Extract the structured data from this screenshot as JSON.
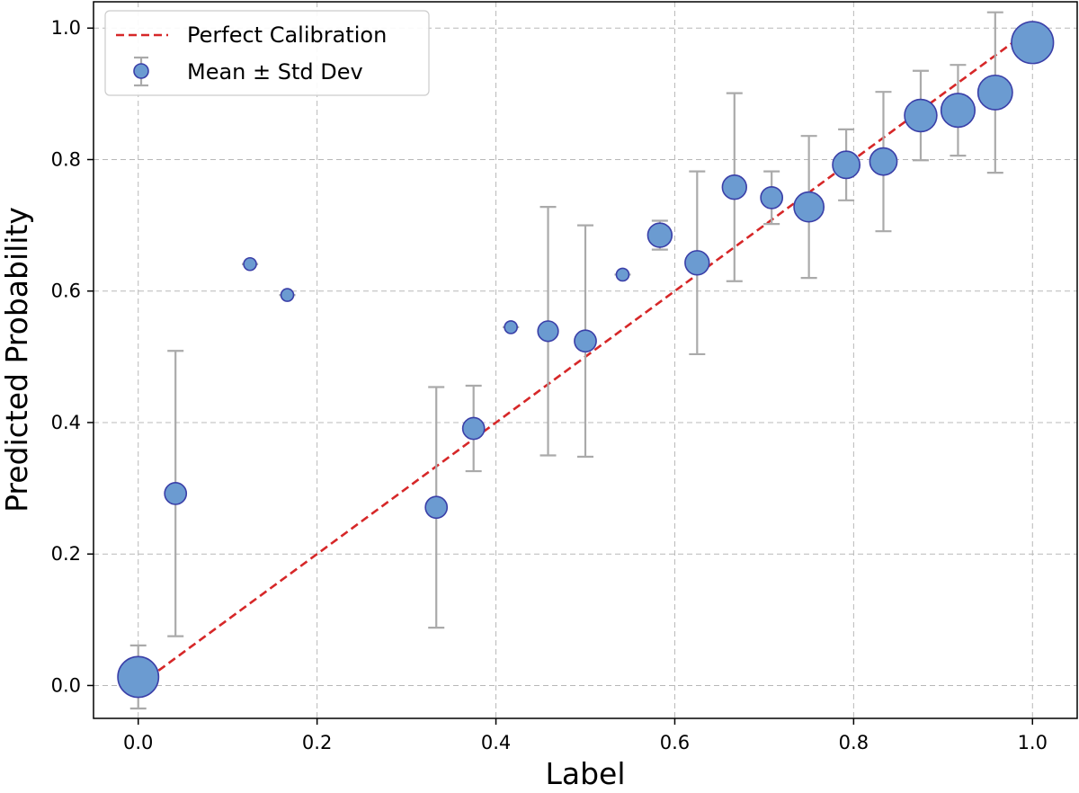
{
  "chart_data": {
    "type": "scatter",
    "title": "",
    "xlabel": "Label",
    "ylabel": "Predicted Probability",
    "xlim": [
      -0.05,
      1.05
    ],
    "ylim": [
      -0.05,
      1.04
    ],
    "xticks": [
      0.0,
      0.2,
      0.4,
      0.6,
      0.8,
      1.0
    ],
    "xtick_labels": [
      "0.0",
      "0.2",
      "0.4",
      "0.6",
      "0.8",
      "1.0"
    ],
    "yticks": [
      0.0,
      0.2,
      0.4,
      0.6,
      0.8,
      1.0
    ],
    "ytick_labels": [
      "0.0",
      "0.2",
      "0.4",
      "0.6",
      "0.8",
      "1.0"
    ],
    "grid": true,
    "legend_position": "top-left",
    "legend": [
      {
        "label": "Perfect Calibration",
        "kind": "dashed-line",
        "color": "#d62728"
      },
      {
        "label": "Mean ± Std Dev",
        "kind": "marker-errorbar",
        "color": "#6b9bd1"
      }
    ],
    "reference_line": {
      "name": "Perfect Calibration",
      "x": [
        0.0,
        1.0
      ],
      "y": [
        0.0,
        1.0
      ],
      "color": "#d62728",
      "style": "dashed"
    },
    "series": [
      {
        "name": "Mean ± Std Dev",
        "color": "#6b9bd1",
        "edge_color": "#3a3fa8",
        "error_color": "#aaaaaa",
        "x": [
          0.0,
          0.0417,
          0.125,
          0.1667,
          0.3333,
          0.375,
          0.4167,
          0.4583,
          0.5,
          0.5417,
          0.5833,
          0.625,
          0.6667,
          0.7083,
          0.75,
          0.7917,
          0.8333,
          0.875,
          0.9167,
          0.9583,
          1.0
        ],
        "y": [
          0.013,
          0.292,
          0.641,
          0.594,
          0.271,
          0.391,
          0.545,
          0.539,
          0.524,
          0.625,
          0.685,
          0.643,
          0.758,
          0.742,
          0.728,
          0.792,
          0.797,
          0.867,
          0.875,
          0.902,
          0.978
        ],
        "std": [
          0.048,
          0.217,
          0.0,
          0.0,
          0.183,
          0.065,
          0.0,
          0.189,
          0.176,
          0.0,
          0.022,
          0.139,
          0.143,
          0.04,
          0.108,
          0.054,
          0.106,
          0.068,
          0.069,
          0.122,
          0.028
        ],
        "count": [
          30,
          6,
          1,
          1,
          6,
          6,
          1,
          5,
          6,
          1,
          8,
          8,
          8,
          6,
          14,
          11,
          11,
          17,
          19,
          20,
          32
        ]
      }
    ]
  }
}
